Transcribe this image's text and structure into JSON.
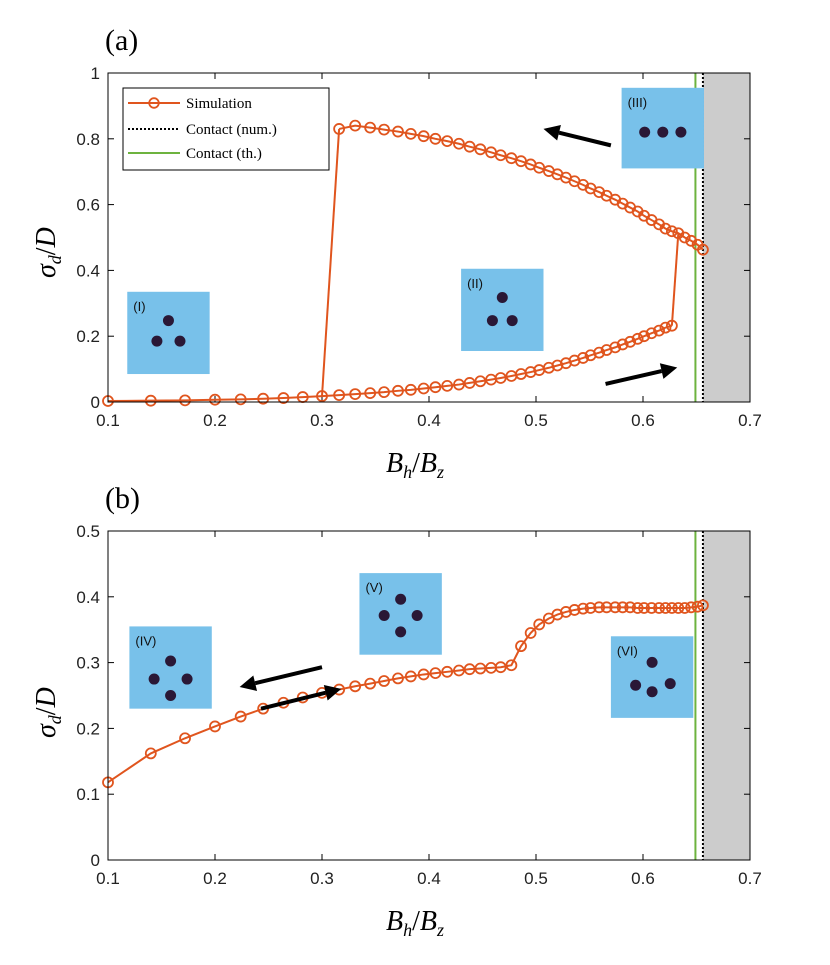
{
  "colors": {
    "simulation": "#e0551e",
    "contact_num": "#000000",
    "contact_th": "#6db33f",
    "shade": "#cccccc",
    "inset_bg": "#78c1ea",
    "particle": "#2a1836",
    "arrow": "#000000"
  },
  "chart_data": [
    {
      "type": "line",
      "panel_label": "(a)",
      "xlabel_main": "B",
      "xlabel_sub_num": "h",
      "xlabel_sub_den": "z",
      "ylabel_main": "σ",
      "ylabel_sub": "d",
      "ylabel_den": "D",
      "xlim": [
        0.1,
        0.7
      ],
      "ylim": [
        0,
        1
      ],
      "xticks": [
        0.1,
        0.2,
        0.3,
        0.4,
        0.5,
        0.6,
        0.7
      ],
      "yticks": [
        0,
        0.2,
        0.4,
        0.6,
        0.8,
        1
      ],
      "xtick_labels": [
        "0.1",
        "0.2",
        "0.3",
        "0.4",
        "0.5",
        "0.6",
        "0.7"
      ],
      "ytick_labels": [
        "0",
        "0.2",
        "0.4",
        "0.6",
        "0.8",
        "1"
      ],
      "contact_num_x": 0.656,
      "contact_th_x": 0.649,
      "legend": {
        "position": "top-left",
        "entries": [
          "Simulation",
          "Contact (num.)",
          "Contact (th.)"
        ]
      },
      "series": [
        {
          "name": "Simulation (lower branch)",
          "x": [
            0.1,
            0.14,
            0.172,
            0.2,
            0.224,
            0.245,
            0.264,
            0.282,
            0.3,
            0.316,
            0.331,
            0.345,
            0.358,
            0.371,
            0.383,
            0.395,
            0.406,
            0.417,
            0.428,
            0.438,
            0.448,
            0.458,
            0.467,
            0.477,
            0.486,
            0.495,
            0.503,
            0.512,
            0.52,
            0.528,
            0.536,
            0.544,
            0.551,
            0.559,
            0.566,
            0.574,
            0.581,
            0.588,
            0.595,
            0.601,
            0.608,
            0.615,
            0.621,
            0.627
          ],
          "values": [
            0.003,
            0.004,
            0.005,
            0.007,
            0.008,
            0.01,
            0.012,
            0.015,
            0.018,
            0.021,
            0.024,
            0.027,
            0.03,
            0.034,
            0.037,
            0.041,
            0.045,
            0.049,
            0.053,
            0.058,
            0.063,
            0.068,
            0.073,
            0.079,
            0.085,
            0.091,
            0.097,
            0.104,
            0.111,
            0.118,
            0.126,
            0.134,
            0.142,
            0.15,
            0.158,
            0.166,
            0.175,
            0.183,
            0.192,
            0.2,
            0.209,
            0.217,
            0.226,
            0.232
          ]
        },
        {
          "name": "Simulation (upper branch)",
          "x": [
            0.316,
            0.331,
            0.345,
            0.358,
            0.371,
            0.383,
            0.395,
            0.406,
            0.417,
            0.428,
            0.438,
            0.448,
            0.458,
            0.467,
            0.477,
            0.486,
            0.495,
            0.503,
            0.512,
            0.52,
            0.528,
            0.536,
            0.544,
            0.551,
            0.559,
            0.566,
            0.574,
            0.581,
            0.588,
            0.595,
            0.601,
            0.608,
            0.615,
            0.621,
            0.627,
            0.633,
            0.639,
            0.645,
            0.651,
            0.656
          ],
          "values": [
            0.83,
            0.84,
            0.834,
            0.828,
            0.822,
            0.815,
            0.808,
            0.8,
            0.793,
            0.785,
            0.776,
            0.768,
            0.759,
            0.75,
            0.741,
            0.732,
            0.722,
            0.712,
            0.702,
            0.692,
            0.682,
            0.671,
            0.66,
            0.649,
            0.638,
            0.627,
            0.615,
            0.603,
            0.591,
            0.579,
            0.566,
            0.553,
            0.54,
            0.527,
            0.519,
            0.513,
            0.5,
            0.49,
            0.478,
            0.463
          ]
        }
      ],
      "jumps": [
        {
          "x": [
            0.3,
            0.316
          ],
          "values": [
            0.018,
            0.83
          ]
        },
        {
          "x": [
            0.627,
            0.633
          ],
          "values": [
            0.232,
            0.513
          ]
        }
      ],
      "arrows": [
        {
          "from": [
            0.57,
            0.78
          ],
          "to": [
            0.507,
            0.83
          ]
        },
        {
          "from": [
            0.565,
            0.055
          ],
          "to": [
            0.632,
            0.105
          ]
        }
      ],
      "insets": [
        {
          "label": "(I)",
          "x0": 0.118,
          "x1": 0.195,
          "y_top": 0.335,
          "y_bot": 0.085,
          "dots": [
            [
              0.5,
              0.35
            ],
            [
              0.36,
              0.6
            ],
            [
              0.64,
              0.6
            ]
          ]
        },
        {
          "label": "(II)",
          "x0": 0.43,
          "x1": 0.507,
          "y_top": 0.405,
          "y_bot": 0.155,
          "dots": [
            [
              0.5,
              0.35
            ],
            [
              0.38,
              0.63
            ],
            [
              0.62,
              0.63
            ]
          ]
        },
        {
          "label": "(III)",
          "x0": 0.58,
          "x1": 0.657,
          "y_top": 0.955,
          "y_bot": 0.71,
          "dots": [
            [
              0.28,
              0.55
            ],
            [
              0.5,
              0.55
            ],
            [
              0.72,
              0.55
            ]
          ]
        }
      ]
    },
    {
      "type": "line",
      "panel_label": "(b)",
      "xlabel_main": "B",
      "xlabel_sub_num": "h",
      "xlabel_sub_den": "z",
      "ylabel_main": "σ",
      "ylabel_sub": "d",
      "ylabel_den": "D",
      "xlim": [
        0.1,
        0.7
      ],
      "ylim": [
        0,
        0.5
      ],
      "xticks": [
        0.1,
        0.2,
        0.3,
        0.4,
        0.5,
        0.6,
        0.7
      ],
      "yticks": [
        0,
        0.1,
        0.2,
        0.3,
        0.4,
        0.5
      ],
      "xtick_labels": [
        "0.1",
        "0.2",
        "0.3",
        "0.4",
        "0.5",
        "0.6",
        "0.7"
      ],
      "ytick_labels": [
        "0",
        "0.1",
        "0.2",
        "0.3",
        "0.4",
        "0.5"
      ],
      "contact_num_x": 0.656,
      "contact_th_x": 0.649,
      "series": [
        {
          "name": "Simulation",
          "x": [
            0.1,
            0.14,
            0.172,
            0.2,
            0.224,
            0.245,
            0.264,
            0.282,
            0.3,
            0.316,
            0.331,
            0.345,
            0.358,
            0.371,
            0.383,
            0.395,
            0.406,
            0.417,
            0.428,
            0.438,
            0.448,
            0.458,
            0.467,
            0.477,
            0.486,
            0.495,
            0.503,
            0.512,
            0.52,
            0.528,
            0.536,
            0.544,
            0.551,
            0.559,
            0.566,
            0.574,
            0.581,
            0.588,
            0.595,
            0.601,
            0.608,
            0.615,
            0.621,
            0.627,
            0.633,
            0.639,
            0.645,
            0.651,
            0.656
          ],
          "values": [
            0.118,
            0.162,
            0.185,
            0.203,
            0.218,
            0.23,
            0.239,
            0.247,
            0.254,
            0.259,
            0.264,
            0.268,
            0.272,
            0.276,
            0.279,
            0.282,
            0.284,
            0.286,
            0.288,
            0.29,
            0.291,
            0.292,
            0.293,
            0.296,
            0.325,
            0.345,
            0.358,
            0.367,
            0.373,
            0.377,
            0.38,
            0.382,
            0.383,
            0.384,
            0.384,
            0.384,
            0.384,
            0.384,
            0.383,
            0.383,
            0.383,
            0.383,
            0.383,
            0.383,
            0.383,
            0.383,
            0.384,
            0.385,
            0.387
          ]
        }
      ],
      "arrows": [
        {
          "from": [
            0.3,
            0.293
          ],
          "to": [
            0.223,
            0.263
          ]
        },
        {
          "from": [
            0.243,
            0.23
          ],
          "to": [
            0.318,
            0.26
          ]
        }
      ],
      "insets": [
        {
          "label": "(IV)",
          "x0": 0.12,
          "x1": 0.197,
          "y_top": 0.355,
          "y_bot": 0.23,
          "dots": [
            [
              0.5,
              0.42
            ],
            [
              0.3,
              0.64
            ],
            [
              0.7,
              0.64
            ],
            [
              0.5,
              0.84
            ]
          ]
        },
        {
          "label": "(V)",
          "x0": 0.335,
          "x1": 0.412,
          "y_top": 0.436,
          "y_bot": 0.312,
          "dots": [
            [
              0.5,
              0.32
            ],
            [
              0.3,
              0.52
            ],
            [
              0.7,
              0.52
            ],
            [
              0.5,
              0.72
            ]
          ]
        },
        {
          "label": "(VI)",
          "x0": 0.57,
          "x1": 0.647,
          "y_top": 0.34,
          "y_bot": 0.216,
          "dots": [
            [
              0.5,
              0.32
            ],
            [
              0.3,
              0.6
            ],
            [
              0.5,
              0.68
            ],
            [
              0.72,
              0.58
            ]
          ]
        }
      ]
    }
  ]
}
